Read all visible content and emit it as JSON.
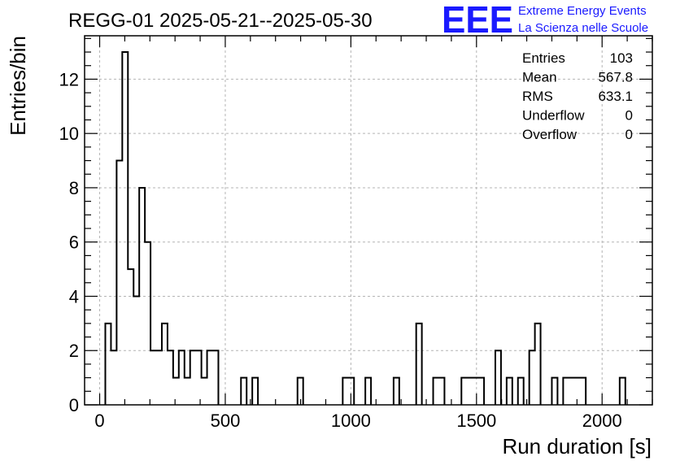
{
  "chart_data": {
    "type": "histogram",
    "title": "REGG-01 2025-05-21--2025-05-30",
    "xlabel": "Run duration [s]",
    "ylabel": "Entries/bin",
    "xlim": [
      -60,
      2200
    ],
    "ylim": [
      0,
      13.6
    ],
    "x_ticks": [
      0,
      500,
      1000,
      1500,
      2000
    ],
    "y_ticks": [
      0,
      2,
      4,
      6,
      8,
      10,
      12
    ],
    "grid": true,
    "bin_width": 22.5,
    "bins": [
      {
        "x": 22.5,
        "y": 3
      },
      {
        "x": 45,
        "y": 2
      },
      {
        "x": 67.5,
        "y": 9
      },
      {
        "x": 90,
        "y": 13
      },
      {
        "x": 112.5,
        "y": 5
      },
      {
        "x": 135,
        "y": 4
      },
      {
        "x": 157.5,
        "y": 8
      },
      {
        "x": 180,
        "y": 6
      },
      {
        "x": 202.5,
        "y": 2
      },
      {
        "x": 225,
        "y": 2
      },
      {
        "x": 247.5,
        "y": 3
      },
      {
        "x": 270,
        "y": 2
      },
      {
        "x": 292.5,
        "y": 1
      },
      {
        "x": 315,
        "y": 2
      },
      {
        "x": 337.5,
        "y": 1
      },
      {
        "x": 360,
        "y": 2
      },
      {
        "x": 382.5,
        "y": 2
      },
      {
        "x": 405,
        "y": 1
      },
      {
        "x": 427.5,
        "y": 2
      },
      {
        "x": 450,
        "y": 2
      },
      {
        "x": 562.5,
        "y": 1
      },
      {
        "x": 607.5,
        "y": 1
      },
      {
        "x": 787.5,
        "y": 1
      },
      {
        "x": 967.5,
        "y": 1
      },
      {
        "x": 990,
        "y": 1
      },
      {
        "x": 1057.5,
        "y": 1
      },
      {
        "x": 1170,
        "y": 1
      },
      {
        "x": 1260,
        "y": 3
      },
      {
        "x": 1327.5,
        "y": 1
      },
      {
        "x": 1350,
        "y": 1
      },
      {
        "x": 1440,
        "y": 1
      },
      {
        "x": 1462.5,
        "y": 1
      },
      {
        "x": 1485,
        "y": 1
      },
      {
        "x": 1507.5,
        "y": 1
      },
      {
        "x": 1575,
        "y": 2
      },
      {
        "x": 1620,
        "y": 1
      },
      {
        "x": 1665,
        "y": 1
      },
      {
        "x": 1710,
        "y": 2
      },
      {
        "x": 1732.5,
        "y": 3
      },
      {
        "x": 1800,
        "y": 1
      },
      {
        "x": 1845,
        "y": 1
      },
      {
        "x": 1867.5,
        "y": 1
      },
      {
        "x": 1890,
        "y": 1
      },
      {
        "x": 1912.5,
        "y": 1
      },
      {
        "x": 2070,
        "y": 1
      }
    ],
    "line_color": "#000000"
  },
  "logo": {
    "letters": "EEE",
    "line1": "Extreme Energy Events",
    "line2": "La Scienza nelle Scuole",
    "color": "#1a1aff"
  },
  "stats": [
    {
      "label": "Entries",
      "value": "103"
    },
    {
      "label": "Mean",
      "value": "567.8"
    },
    {
      "label": "RMS",
      "value": "633.1"
    },
    {
      "label": "Underflow",
      "value": "0"
    },
    {
      "label": "Overflow",
      "value": "0"
    }
  ]
}
